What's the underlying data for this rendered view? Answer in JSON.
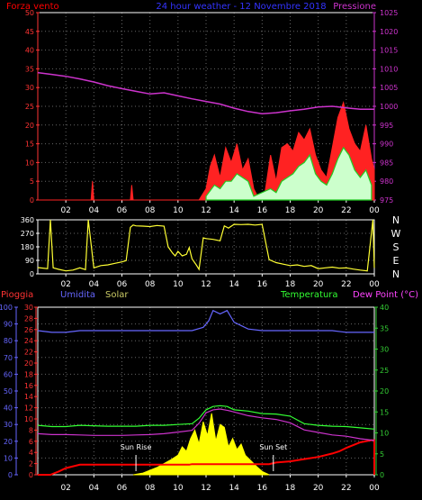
{
  "colors": {
    "wind": "#ff0000",
    "pressure": "#cc33cc",
    "gust": "#ff2222",
    "wind_avg": "#22cc22",
    "direction": "#ffff33",
    "axis": "#ffffff",
    "grid": "#666666",
    "rain": "#ff0000",
    "humidity": "#6666ff",
    "solar": "#ffff00",
    "temperature": "#33ff33",
    "dewpoint": "#cc33cc",
    "temp_axis": "#33cc33"
  },
  "chart_data": [
    {
      "type": "line",
      "title": "24 hour weather - 12 Novembre 2018",
      "left_label": "Forza vento",
      "right_label": "Pressione",
      "x_ticks": [
        "02",
        "04",
        "06",
        "08",
        "10",
        "12",
        "14",
        "16",
        "18",
        "20",
        "22",
        "00"
      ],
      "y_left": {
        "min": 0,
        "max": 50,
        "ticks": [
          "0",
          "5",
          "10",
          "15",
          "20",
          "25",
          "30",
          "35",
          "40",
          "45",
          "50"
        ]
      },
      "y_right": {
        "min": 975,
        "max": 1025,
        "ticks": [
          "975",
          "980",
          "985",
          "990",
          "995",
          "1000",
          "1005",
          "1010",
          "1015",
          "1020",
          "1025"
        ]
      },
      "series": [
        {
          "name": "Pressione",
          "axis": "right",
          "x": [
            0,
            1,
            2,
            3,
            4,
            5,
            6,
            7,
            8,
            9,
            10,
            11,
            12,
            13,
            14,
            15,
            16,
            17,
            18,
            19,
            20,
            21,
            22,
            23,
            24
          ],
          "y": [
            1009,
            1008.5,
            1008,
            1007.3,
            1006.5,
            1005.5,
            1004.7,
            1004,
            1003.3,
            1003.6,
            1002.8,
            1002,
            1001.3,
            1000.6,
            999.5,
            998.6,
            998,
            998.3,
            998.8,
            999.2,
            999.8,
            1000,
            999.6,
            999.2,
            999.2
          ]
        },
        {
          "name": "Raffica",
          "x": [
            0,
            3.8,
            3.9,
            4.0,
            6.6,
            6.7,
            6.8,
            11.5,
            12.0,
            12.3,
            12.6,
            13.0,
            13.4,
            13.8,
            14.2,
            14.6,
            15.0,
            15.4,
            15.8,
            16.2,
            16.6,
            17.0,
            17.4,
            17.8,
            18.2,
            18.6,
            19.0,
            19.4,
            19.8,
            20.2,
            20.6,
            21.0,
            21.4,
            21.8,
            22.2,
            22.6,
            23.0,
            23.4,
            23.8,
            24
          ],
          "y": [
            0,
            0,
            5,
            0,
            0,
            4,
            0,
            0,
            3,
            9,
            12,
            6,
            14,
            10,
            15,
            8,
            11,
            3,
            0,
            2,
            12,
            5,
            14,
            15,
            13,
            18,
            16,
            19,
            12,
            8,
            6,
            14,
            22,
            26,
            19,
            15,
            13,
            20,
            11,
            8
          ]
        },
        {
          "name": "Vento medio",
          "x": [
            12.0,
            12.6,
            13.0,
            13.4,
            13.8,
            14.2,
            14.6,
            15.0,
            15.4,
            16.6,
            17.0,
            17.4,
            17.8,
            18.2,
            18.6,
            19.0,
            19.4,
            19.8,
            20.2,
            20.6,
            21.0,
            21.4,
            21.8,
            22.2,
            22.6,
            23.0,
            23.4,
            23.8
          ],
          "y": [
            1,
            4,
            3,
            5,
            5,
            7,
            6,
            5,
            1,
            3,
            2,
            5,
            6,
            7,
            9,
            10,
            12,
            7,
            5,
            4,
            7,
            11,
            14,
            12,
            8,
            6,
            8,
            4
          ]
        }
      ]
    },
    {
      "type": "line",
      "x_ticks": [
        "02",
        "04",
        "06",
        "08",
        "10",
        "12",
        "14",
        "16",
        "18",
        "20",
        "22",
        "00"
      ],
      "y_left": {
        "min": 0,
        "max": 360,
        "ticks": [
          "0",
          "90",
          "180",
          "270",
          "360"
        ]
      },
      "compass": [
        "N",
        "W",
        "S",
        "E",
        "N"
      ],
      "series": [
        {
          "name": "Direzione vento",
          "x": [
            0,
            0.7,
            0.9,
            1.1,
            1.5,
            2.0,
            2.5,
            3.0,
            3.4,
            3.6,
            4.0,
            4.5,
            5.0,
            5.5,
            6.0,
            6.3,
            6.6,
            6.8,
            7.0,
            7.5,
            8.0,
            8.5,
            9.0,
            9.3,
            9.6,
            9.8,
            10.0,
            10.3,
            10.6,
            10.8,
            11.0,
            11.3,
            11.5,
            11.8,
            12.0,
            12.5,
            13.0,
            13.3,
            13.6,
            14.0,
            14.5,
            15.0,
            15.5,
            16.0,
            16.5,
            17.0,
            17.5,
            18.0,
            18.5,
            19.0,
            19.5,
            20.0,
            20.5,
            21.0,
            21.5,
            22.0,
            22.5,
            23.0,
            23.5,
            23.9,
            24
          ],
          "y": [
            42,
            35,
            360,
            40,
            30,
            20,
            25,
            40,
            28,
            360,
            40,
            55,
            60,
            70,
            80,
            88,
            310,
            325,
            320,
            318,
            315,
            322,
            318,
            180,
            140,
            120,
            150,
            120,
            130,
            175,
            100,
            60,
            30,
            240,
            235,
            230,
            220,
            320,
            305,
            330,
            328,
            330,
            325,
            330,
            95,
            75,
            65,
            55,
            60,
            50,
            55,
            35,
            40,
            45,
            38,
            40,
            32,
            25,
            20,
            360,
            40
          ]
        }
      ]
    },
    {
      "type": "line",
      "legend": [
        "Pioggia",
        "Umidita",
        "Solar",
        "Temperatura",
        "Dew Point (°C)"
      ],
      "x_ticks": [
        "02",
        "04",
        "06",
        "08",
        "10",
        "12",
        "14",
        "16",
        "18",
        "20",
        "22",
        "00"
      ],
      "y_axis_1": {
        "min": 0,
        "max": 100,
        "ticks": [
          "0",
          "10",
          "20",
          "30",
          "40",
          "50",
          "60",
          "70",
          "80",
          "90",
          "100"
        ]
      },
      "y_axis_2": {
        "min": 0,
        "max": 30,
        "ticks": [
          "0",
          "2",
          "4",
          "6",
          "8",
          "10",
          "12",
          "14",
          "16",
          "18",
          "20",
          "22",
          "24",
          "26",
          "28",
          "30"
        ]
      },
      "y_right": {
        "min": 0,
        "max": 40,
        "ticks": [
          "0",
          "5",
          "10",
          "15",
          "20",
          "25",
          "30",
          "35",
          "40"
        ]
      },
      "annotations": [
        {
          "text": "Sun Rise",
          "x": 7.0
        },
        {
          "text": "Sun Set",
          "x": 16.8
        }
      ],
      "series": [
        {
          "name": "Umidita",
          "axis": "y_axis_1",
          "x": [
            0,
            1,
            2,
            3,
            4,
            5,
            6,
            7,
            8,
            9,
            10,
            11,
            11.8,
            12.2,
            12.5,
            13.0,
            13.5,
            14.0,
            15,
            16,
            17,
            18,
            19,
            20,
            21,
            22,
            23,
            24
          ],
          "y": [
            86,
            85,
            85,
            86,
            86,
            86,
            86,
            86,
            86,
            86,
            86,
            86,
            88,
            92,
            98,
            96,
            98,
            91,
            87,
            86,
            86,
            86,
            86,
            86,
            86,
            85,
            85,
            85
          ]
        },
        {
          "name": "Temperatura",
          "axis": "y_right",
          "x": [
            0,
            1,
            2,
            3,
            4,
            5,
            6,
            7,
            8,
            9,
            10,
            11,
            11.5,
            12,
            12.5,
            13,
            13.5,
            14,
            15,
            16,
            17,
            18,
            19,
            20,
            21,
            22,
            23,
            24
          ],
          "y": [
            11.8,
            11.5,
            11.5,
            11.8,
            11.7,
            11.6,
            11.6,
            11.6,
            11.8,
            11.8,
            12.0,
            12.2,
            13.5,
            15.5,
            16.3,
            16.5,
            16.3,
            15.5,
            15.2,
            14.6,
            14.5,
            14.0,
            12.2,
            11.8,
            11.6,
            11.5,
            11.2,
            10.9
          ]
        },
        {
          "name": "Dew Point (°C)",
          "axis": "y_right",
          "x": [
            0,
            1,
            2,
            3,
            4,
            5,
            6,
            7,
            8,
            9,
            10,
            11,
            11.5,
            12,
            12.5,
            13,
            13.5,
            14,
            15,
            16,
            17,
            18,
            19,
            20,
            21,
            22,
            23,
            24
          ],
          "y": [
            9.8,
            9.6,
            9.6,
            9.5,
            9.4,
            9.4,
            9.4,
            9.5,
            9.6,
            9.8,
            10.2,
            10.6,
            12.3,
            14.8,
            15.5,
            15.7,
            15.4,
            15.0,
            14.1,
            13.6,
            13.2,
            12.4,
            10.7,
            10.1,
            9.5,
            9.2,
            8.6,
            8.2
          ]
        },
        {
          "name": "Pioggia",
          "axis": "y_axis_2",
          "x": [
            0,
            0.9,
            1.5,
            2.0,
            3.0,
            6.0,
            10.8,
            11.0,
            16.5,
            17.0,
            18.0,
            19.0,
            20.0,
            21.0,
            21.5,
            22.0,
            22.5,
            23.0,
            23.4,
            23.8,
            24.0,
            24.0
          ],
          "y": [
            0,
            0,
            0.6,
            1.2,
            1.8,
            1.8,
            1.8,
            1.9,
            1.9,
            2.2,
            2.4,
            2.8,
            3.2,
            3.8,
            4.2,
            4.8,
            5.3,
            5.8,
            6.0,
            6.2,
            6.2,
            0
          ]
        },
        {
          "name": "Solar",
          "axis": "y_axis_2",
          "x": [
            6.8,
            7.5,
            8.0,
            8.5,
            9.0,
            9.5,
            10.0,
            10.3,
            10.6,
            10.9,
            11.2,
            11.5,
            11.8,
            12.1,
            12.4,
            12.7,
            13.0,
            13.3,
            13.6,
            13.9,
            14.2,
            14.5,
            14.8,
            15.2,
            15.6,
            16.0,
            16.5
          ],
          "y": [
            0,
            0.3,
            0.8,
            1.3,
            2.0,
            2.7,
            3.5,
            5.0,
            4.2,
            6.5,
            8.0,
            5.5,
            9.5,
            7.0,
            11.0,
            6.0,
            9.0,
            8.5,
            5.0,
            6.5,
            4.5,
            5.5,
            3.5,
            2.5,
            1.5,
            0.6,
            0
          ]
        }
      ]
    }
  ]
}
